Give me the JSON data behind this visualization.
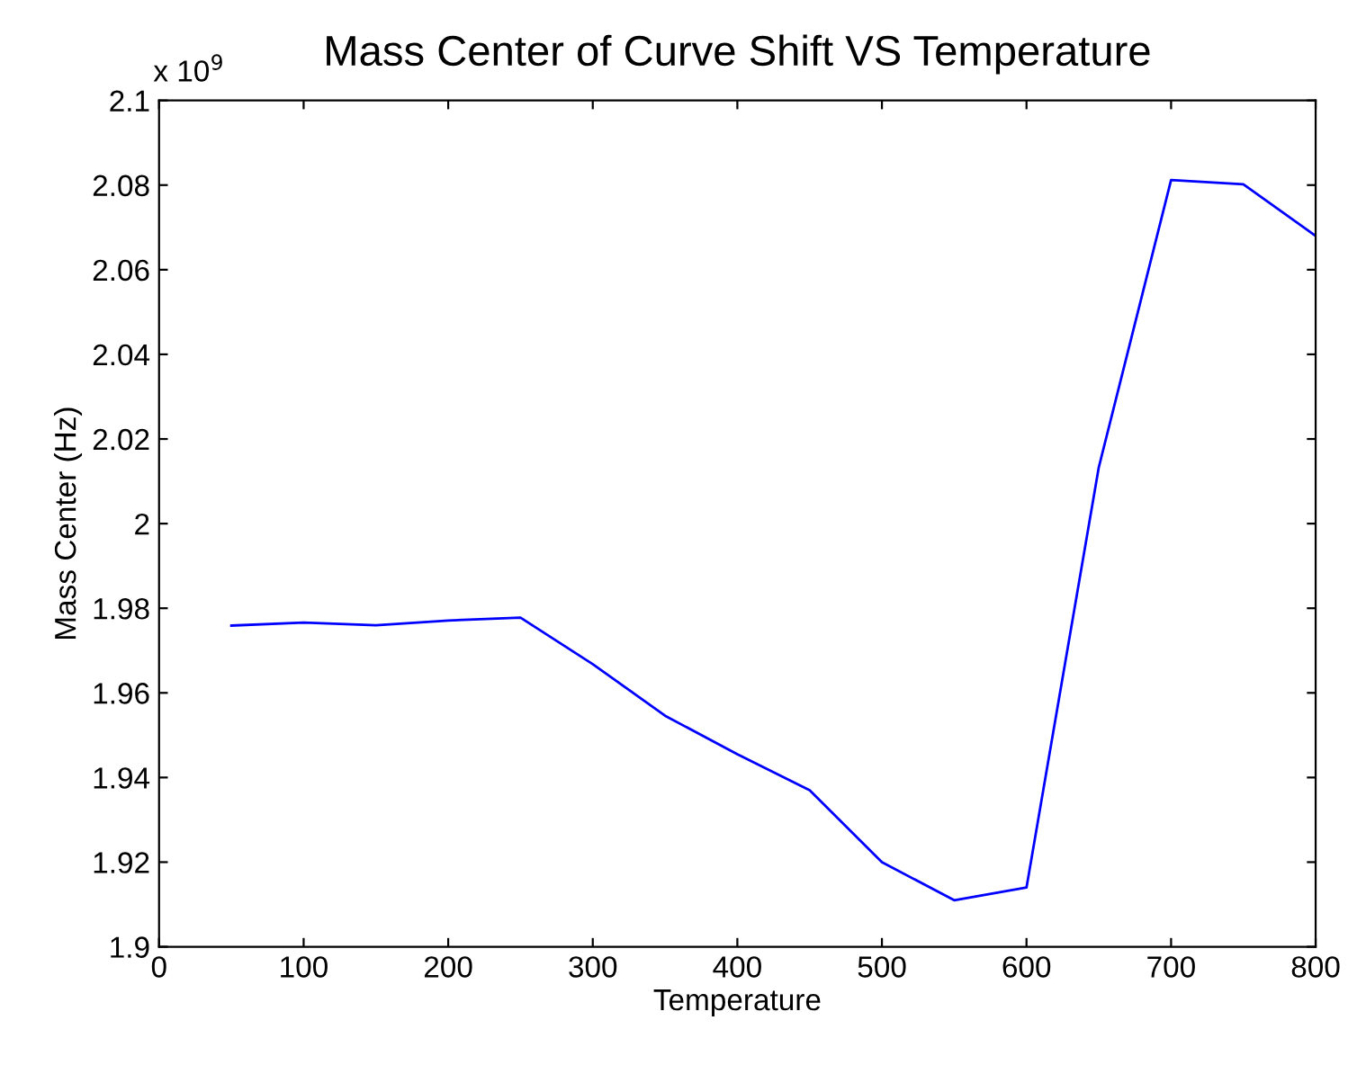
{
  "chart_data": {
    "type": "line",
    "title": "Mass Center of Curve Shift VS Temperature",
    "xlabel": "Temperature",
    "ylabel": "Mass Center (Hz)",
    "annotations": [
      "x 10$^{9}$"
    ],
    "x": [
      50,
      100,
      150,
      200,
      250,
      300,
      350,
      400,
      450,
      500,
      550,
      600,
      650,
      700,
      750,
      800
    ],
    "series": [
      {
        "color": "#0000ff",
        "values": [
          1.9759,
          1.9766,
          1.976,
          1.9771,
          1.9778,
          1.9668,
          1.9546,
          1.9455,
          1.937,
          1.92,
          1.911,
          1.914,
          2.0133,
          2.0812,
          2.0802,
          2.068
        ]
      }
    ],
    "xlim": [
      0,
      800
    ],
    "xticks": [
      0,
      100,
      200,
      300,
      400,
      500,
      600,
      700,
      800
    ],
    "ylim": [
      1.9,
      2.1
    ],
    "yticks": [
      1.9,
      1.92,
      1.94,
      1.96,
      1.98,
      2,
      2.02,
      2.04,
      2.06,
      2.08,
      2.1
    ],
    "grid": false,
    "legend": false,
    "marker": "none",
    "line_style": "solid"
  }
}
